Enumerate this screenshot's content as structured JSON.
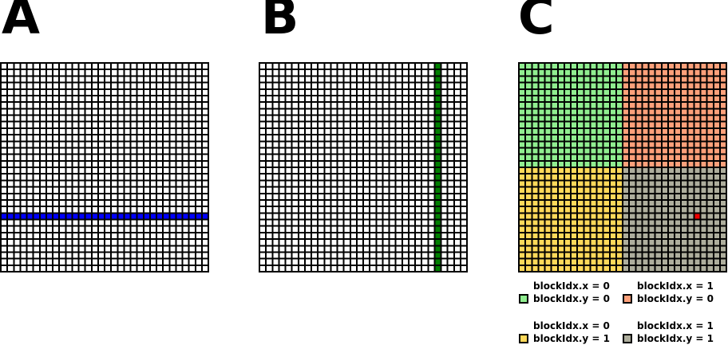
{
  "figure": {
    "background_color": "#ffffff",
    "panels": [
      {
        "label": "A",
        "grid": {
          "cols": 32,
          "rows": 32,
          "line_color": "#000000",
          "cell_color": "#ffffff",
          "highlight": {
            "type": "row",
            "index": 23,
            "color": "#0000ff"
          }
        }
      },
      {
        "label": "B",
        "grid": {
          "cols": 32,
          "rows": 32,
          "line_color": "#000000",
          "cell_color": "#ffffff",
          "highlight": {
            "type": "col",
            "index": 27,
            "color": "#008000"
          }
        }
      },
      {
        "label": "C",
        "grid": {
          "cols": 32,
          "rows": 32,
          "line_color": "#000000",
          "block_size": 16,
          "blocks": [
            {
              "blockIdx_x": 0,
              "blockIdx_y": 0,
              "color": "#90ee90"
            },
            {
              "blockIdx_x": 1,
              "blockIdx_y": 0,
              "color": "#ffa07a"
            },
            {
              "blockIdx_x": 0,
              "blockIdx_y": 1,
              "color": "#ffd95a"
            },
            {
              "blockIdx_x": 1,
              "blockIdx_y": 1,
              "color": "#aeae9d"
            }
          ],
          "marker": {
            "col": 27,
            "row": 23,
            "color": "#ee0000"
          }
        }
      }
    ],
    "legend": {
      "entries": [
        {
          "swatch_color": "#90ee90",
          "line1": "blockIdx.x = 0",
          "line2": "blockIdx.y = 0"
        },
        {
          "swatch_color": "#ffa07a",
          "line1": "blockIdx.x = 1",
          "line2": "blockIdx.y = 0"
        },
        {
          "swatch_color": "#ffd95a",
          "line1": "blockIdx.x = 0",
          "line2": "blockIdx.y = 1"
        },
        {
          "swatch_color": "#aeae9d",
          "line1": "blockIdx.x = 1",
          "line2": "blockIdx.y = 1"
        }
      ]
    }
  }
}
